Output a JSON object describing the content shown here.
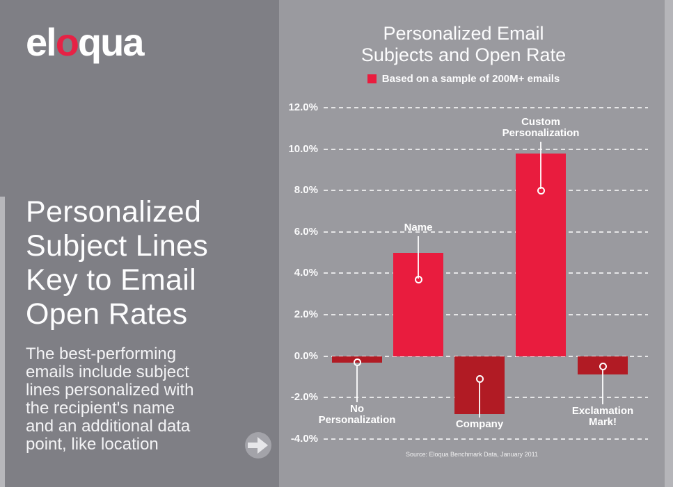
{
  "left_panel": {
    "logo": {
      "part1": "el",
      "part2": "o",
      "part3": "qua",
      "brand_red": "#e62245"
    },
    "title_lines": [
      "Personalized",
      "Subject Lines",
      "Key to Email",
      "Open Rates"
    ],
    "subtitle_lines": [
      "The best-performing",
      "emails include subject",
      "lines personalized with",
      "the recipient's name",
      "and an additional data",
      "point, like location"
    ]
  },
  "chart_data": {
    "type": "bar",
    "title": "Personalized Email Subjects and Open Rate",
    "title_lines": [
      "Personalized Email",
      "Subjects and Open Rate"
    ],
    "legend": "Based on a sample of 200M+ emails",
    "legend_position": "top",
    "categories": [
      "No Personalization",
      "Name",
      "Company",
      "Custom Personalization",
      "Exclamation Mark!"
    ],
    "category_label_lines": [
      [
        "No",
        "Personalization"
      ],
      [
        "Name"
      ],
      [
        "Company"
      ],
      [
        "Custom",
        "Personalization"
      ],
      [
        "Exclamation",
        "Mark!"
      ]
    ],
    "values": [
      -0.3,
      5.0,
      -2.8,
      9.8,
      -0.9
    ],
    "unit": "%",
    "ylim": [
      -4,
      12
    ],
    "yticks": [
      12,
      10,
      8,
      6,
      4,
      2,
      0,
      -2,
      -4
    ],
    "ytick_labels": [
      "12.0%",
      "10.0%",
      "8.0%",
      "6.0%",
      "4.0%",
      "2.0%",
      "0.0%",
      "-2.0%",
      "-4.0%"
    ],
    "grid": "horizontal-dashed",
    "marker_values": [
      -0.3,
      3.7,
      -1.1,
      8.0,
      -0.5
    ],
    "source": "Source: Eloqua Benchmark Data, January 2011",
    "colors": {
      "positive_bar": "#e91c3e",
      "negative_bar": "#b11b24",
      "legend_swatch": "#e91c3e"
    }
  }
}
